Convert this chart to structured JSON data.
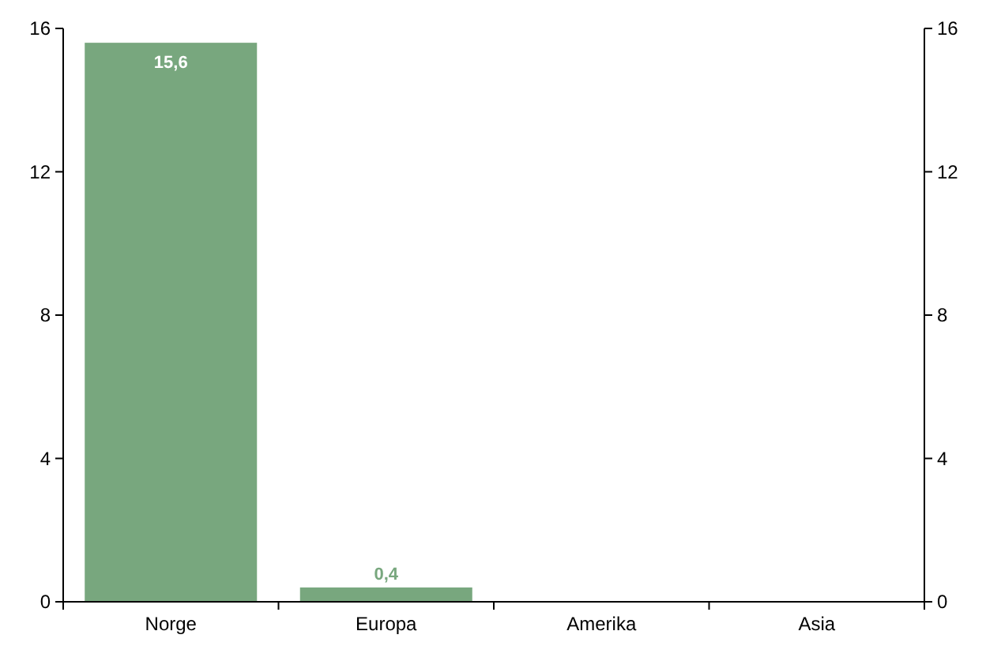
{
  "chart_data": {
    "type": "bar",
    "categories": [
      "Norge",
      "Europa",
      "Amerika",
      "Asia"
    ],
    "values": [
      15.6,
      0.4,
      0,
      0
    ],
    "value_labels": [
      "15,6",
      "0,4",
      null,
      null
    ],
    "color": "#78a77e",
    "ylim": [
      0,
      16
    ],
    "yticks": [
      0,
      4,
      8,
      12,
      16
    ],
    "y2lim": [
      0,
      16
    ],
    "y2ticks": [
      0,
      4,
      8,
      12,
      16
    ]
  }
}
